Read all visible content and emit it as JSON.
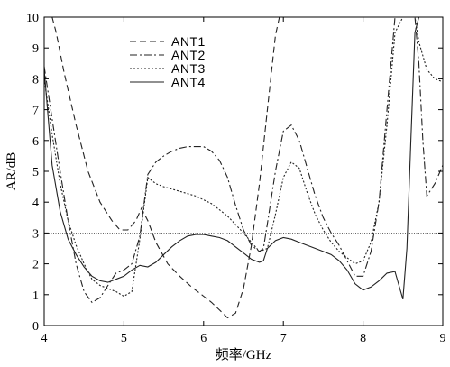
{
  "chart_data": {
    "type": "line",
    "xlabel": "频率/GHz",
    "ylabel": "AR/dB",
    "xlim": [
      4,
      9
    ],
    "ylim": [
      0,
      10
    ],
    "xticks": [
      "4",
      "5",
      "6",
      "7",
      "8",
      "9"
    ],
    "yticks": [
      "0",
      "1",
      "2",
      "3",
      "4",
      "5",
      "6",
      "7",
      "8",
      "9",
      "10"
    ],
    "legend_position": "top-left",
    "reference_line": {
      "y": 3,
      "style": "dotted"
    },
    "series": [
      {
        "name": "ANT1",
        "dash": "dashed",
        "x": [
          4.1,
          4.15,
          4.25,
          4.4,
          4.55,
          4.7,
          4.85,
          4.95,
          5.05,
          5.15,
          5.22,
          5.3,
          5.4,
          5.55,
          5.7,
          5.85,
          6.0,
          6.1,
          6.2,
          6.3,
          6.4,
          6.5,
          6.6,
          6.7,
          6.8,
          6.9,
          6.95,
          7.2,
          7.4,
          7.6,
          7.8,
          8.0,
          8.1,
          8.2,
          8.3
        ],
        "y": [
          10.0,
          9.5,
          8.2,
          6.5,
          5.0,
          4.0,
          3.4,
          3.1,
          3.1,
          3.4,
          3.8,
          3.4,
          2.7,
          2.0,
          1.6,
          1.25,
          0.95,
          0.75,
          0.5,
          0.25,
          0.4,
          1.2,
          2.6,
          4.6,
          7.0,
          9.4,
          10.0,
          10.0,
          10.0,
          10.0,
          10.0,
          10.0,
          10.0,
          10.0,
          10.0
        ]
      },
      {
        "name": "ANT2",
        "dash": "dashdot",
        "x": [
          4.0,
          4.1,
          4.2,
          4.3,
          4.4,
          4.5,
          4.6,
          4.7,
          4.8,
          4.9,
          5.0,
          5.1,
          5.2,
          5.3,
          5.4,
          5.5,
          5.6,
          5.7,
          5.8,
          5.9,
          6.0,
          6.1,
          6.2,
          6.3,
          6.4,
          6.5,
          6.6,
          6.7,
          6.75,
          6.8,
          6.9,
          7.0,
          7.1,
          7.2,
          7.3,
          7.4,
          7.5,
          7.6,
          7.7,
          7.8,
          7.9,
          8.0,
          8.1,
          8.2,
          8.3,
          8.4,
          8.5,
          8.6,
          8.65,
          8.7,
          8.75,
          8.8,
          8.9,
          9.0
        ],
        "y": [
          8.4,
          6.7,
          5.0,
          3.4,
          2.0,
          1.1,
          0.75,
          0.9,
          1.3,
          1.7,
          1.8,
          2.0,
          2.9,
          4.9,
          5.3,
          5.5,
          5.65,
          5.75,
          5.8,
          5.8,
          5.8,
          5.65,
          5.35,
          4.8,
          3.9,
          3.1,
          2.6,
          2.4,
          2.5,
          3.3,
          5.0,
          6.3,
          6.5,
          6.0,
          5.1,
          4.2,
          3.5,
          3.0,
          2.6,
          2.1,
          1.6,
          1.6,
          2.4,
          4.0,
          7.0,
          10.0,
          10.0,
          10.0,
          10.0,
          8.5,
          6.0,
          4.2,
          4.6,
          5.2
        ]
      },
      {
        "name": "ANT3",
        "dash": "dotted",
        "x": [
          4.0,
          4.1,
          4.2,
          4.3,
          4.4,
          4.5,
          4.6,
          4.7,
          4.8,
          4.9,
          5.0,
          5.1,
          5.2,
          5.3,
          5.4,
          5.5,
          5.7,
          5.9,
          6.1,
          6.3,
          6.5,
          6.6,
          6.7,
          6.8,
          6.9,
          7.0,
          7.1,
          7.2,
          7.3,
          7.4,
          7.5,
          7.6,
          7.7,
          7.8,
          7.9,
          8.0,
          8.1,
          8.2,
          8.3,
          8.4,
          8.5,
          8.6,
          8.65,
          8.7,
          8.8,
          8.9,
          9.0
        ],
        "y": [
          8.0,
          6.2,
          4.6,
          3.4,
          2.6,
          2.0,
          1.5,
          1.3,
          1.2,
          1.1,
          0.95,
          1.1,
          2.8,
          4.8,
          4.6,
          4.5,
          4.35,
          4.2,
          3.95,
          3.55,
          3.0,
          2.7,
          2.4,
          2.5,
          3.6,
          4.8,
          5.3,
          5.1,
          4.3,
          3.6,
          3.1,
          2.7,
          2.4,
          2.2,
          2.0,
          2.1,
          2.7,
          4.0,
          6.5,
          9.5,
          10.0,
          10.0,
          10.0,
          9.2,
          8.3,
          8.0,
          7.9
        ]
      },
      {
        "name": "ANT4",
        "dash": "solid",
        "x": [
          4.0,
          4.1,
          4.2,
          4.3,
          4.4,
          4.5,
          4.6,
          4.7,
          4.8,
          4.9,
          5.0,
          5.1,
          5.2,
          5.3,
          5.4,
          5.5,
          5.6,
          5.7,
          5.8,
          5.9,
          6.0,
          6.1,
          6.2,
          6.3,
          6.4,
          6.5,
          6.6,
          6.7,
          6.75,
          6.8,
          6.9,
          7.0,
          7.1,
          7.2,
          7.3,
          7.4,
          7.5,
          7.6,
          7.7,
          7.8,
          7.9,
          8.0,
          8.1,
          8.2,
          8.3,
          8.4,
          8.45,
          8.5,
          8.55,
          8.6,
          8.65,
          8.7
        ],
        "y": [
          8.3,
          5.2,
          3.7,
          2.8,
          2.3,
          1.9,
          1.6,
          1.45,
          1.4,
          1.5,
          1.6,
          1.8,
          1.95,
          1.9,
          2.05,
          2.3,
          2.55,
          2.75,
          2.9,
          2.95,
          2.95,
          2.9,
          2.85,
          2.75,
          2.55,
          2.35,
          2.15,
          2.05,
          2.1,
          2.5,
          2.75,
          2.85,
          2.8,
          2.7,
          2.6,
          2.5,
          2.4,
          2.3,
          2.1,
          1.8,
          1.35,
          1.15,
          1.25,
          1.45,
          1.7,
          1.75,
          1.3,
          0.85,
          2.5,
          6.0,
          9.5,
          10.0
        ]
      }
    ]
  }
}
